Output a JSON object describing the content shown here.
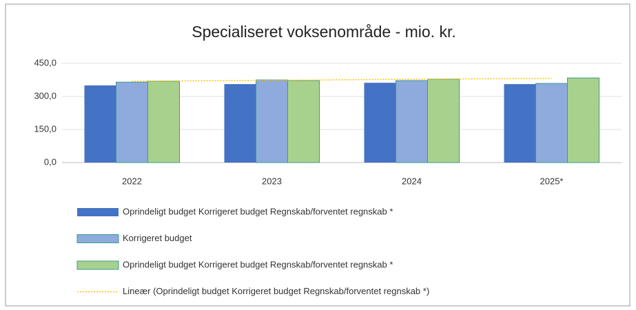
{
  "chart_data": {
    "type": "bar",
    "title": "Specialiseret voksenområde - mio. kr.",
    "categories": [
      "2022",
      "2023",
      "2024",
      "2025*"
    ],
    "series": [
      {
        "name": "Oprindeligt budget Korrigeret budget Regnskab/forventet regnskab *",
        "color": "#4472c4",
        "values": [
          350,
          356,
          362,
          356
        ]
      },
      {
        "name": "Korrigeret budget",
        "color": "#8faadc",
        "values": [
          365,
          375,
          372,
          359
        ]
      },
      {
        "name": "Oprindeligt budget Korrigeret budget Regnskab/forventet regnskab *",
        "color": "#a9d18e",
        "values": [
          369,
          372,
          378,
          384
        ]
      },
      {
        "name": "Lineær (Oprindeligt budget Korrigeret budget Regnskab/forventet regnskab *)",
        "type": "line",
        "color": "#ffc000",
        "values": [
          369,
          373,
          378,
          382
        ]
      }
    ],
    "ylim": [
      0,
      450
    ],
    "yticks": [
      {
        "value": 0,
        "label": "0,0"
      },
      {
        "value": 150,
        "label": "150,0"
      },
      {
        "value": 300,
        "label": "300,0"
      },
      {
        "value": 450,
        "label": "450,0"
      }
    ],
    "grid": true,
    "legend": "bottom"
  }
}
